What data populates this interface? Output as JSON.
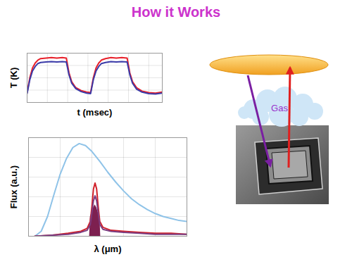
{
  "title": "How it Works",
  "chart_data": [
    {
      "type": "line",
      "x_label": "t (msec)",
      "y_label": "T (K)",
      "xlim": [
        0,
        100
      ],
      "ylim": [
        0,
        10
      ],
      "xticks": [
        0,
        15,
        30,
        45,
        60,
        75,
        90
      ],
      "yticks": [
        0,
        2.5,
        5,
        7.5,
        10
      ],
      "grid": true,
      "tick_labels": false,
      "x": [
        0,
        2,
        4,
        6,
        8,
        10,
        14,
        18,
        22,
        26,
        29,
        31,
        33,
        36,
        40,
        44,
        47,
        49,
        51,
        53,
        55,
        58,
        62,
        66,
        70,
        74,
        76,
        78,
        81,
        85,
        90,
        95,
        100
      ],
      "series": [
        {
          "color": "#e8202a",
          "values": [
            2.0,
            5.0,
            7.0,
            8.0,
            8.6,
            8.9,
            9.0,
            9.1,
            9.0,
            9.1,
            9.0,
            6.0,
            4.2,
            3.0,
            2.4,
            2.1,
            2.0,
            5.0,
            7.0,
            8.0,
            8.6,
            8.9,
            9.1,
            9.0,
            9.1,
            9.0,
            6.0,
            4.2,
            3.0,
            2.3,
            2.0,
            1.9,
            2.1
          ]
        },
        {
          "color": "#3a3aa8",
          "values": [
            1.8,
            4.6,
            6.4,
            7.3,
            7.9,
            8.1,
            8.2,
            8.3,
            8.2,
            8.3,
            8.2,
            5.6,
            3.9,
            2.8,
            2.2,
            1.9,
            1.8,
            4.6,
            6.4,
            7.3,
            7.9,
            8.1,
            8.3,
            8.2,
            8.3,
            8.2,
            5.6,
            3.9,
            2.7,
            2.1,
            1.8,
            1.7,
            1.9
          ]
        }
      ]
    },
    {
      "type": "line",
      "x_label": "λ (μm)",
      "y_label": "Flux (a.u.)",
      "xlim": [
        0,
        10
      ],
      "ylim": [
        0,
        10
      ],
      "xticks": [
        0,
        2,
        4,
        6,
        8,
        10
      ],
      "yticks": [
        0,
        2,
        4,
        6,
        8,
        10
      ],
      "grid": true,
      "tick_labels": false,
      "series": [
        {
          "type": "area",
          "color": "#7d2050",
          "x": [
            3.85,
            3.9,
            4.0,
            4.1,
            4.2,
            4.3,
            4.4,
            4.5,
            4.55
          ],
          "values": [
            0,
            2.0,
            2.4,
            2.9,
            3.2,
            2.9,
            2.4,
            2.0,
            0
          ]
        },
        {
          "color": "#8fc3e8",
          "x": [
            0.4,
            0.8,
            1.2,
            1.6,
            2.0,
            2.4,
            2.8,
            3.2,
            3.6,
            4.0,
            4.5,
            5.0,
            5.5,
            6.0,
            6.5,
            7.0,
            7.5,
            8.0,
            8.5,
            9.0,
            9.5,
            10.0
          ],
          "values": [
            0,
            0.5,
            2.0,
            4.2,
            6.3,
            7.9,
            9.0,
            9.4,
            9.2,
            8.6,
            7.6,
            6.5,
            5.5,
            4.6,
            3.8,
            3.2,
            2.7,
            2.3,
            2.0,
            1.8,
            1.6,
            1.5
          ]
        },
        {
          "color": "#d0202a",
          "x": [
            0.4,
            1.5,
            2.5,
            3.3,
            3.7,
            3.9,
            4.0,
            4.1,
            4.2,
            4.3,
            4.4,
            4.5,
            4.7,
            5.2,
            6.0,
            7.0,
            8.0,
            9.0,
            10.0
          ],
          "values": [
            0,
            0.1,
            0.3,
            0.5,
            0.8,
            1.5,
            3.0,
            4.8,
            5.4,
            4.8,
            3.0,
            1.5,
            0.9,
            0.6,
            0.5,
            0.4,
            0.3,
            0.3,
            0.2
          ]
        },
        {
          "color": "#7a3c80",
          "x": [
            0.4,
            1.5,
            2.5,
            3.3,
            3.7,
            3.9,
            4.0,
            4.1,
            4.2,
            4.3,
            4.4,
            4.5,
            4.7,
            5.2,
            6.0,
            7.0,
            8.0,
            9.0,
            10.0
          ],
          "values": [
            0,
            0.1,
            0.2,
            0.4,
            0.6,
            1.2,
            2.4,
            3.6,
            4.1,
            3.6,
            2.4,
            1.2,
            0.7,
            0.5,
            0.4,
            0.3,
            0.2,
            0.2,
            0.2
          ]
        }
      ]
    }
  ],
  "diagram": {
    "cloud_label": "Gas"
  }
}
